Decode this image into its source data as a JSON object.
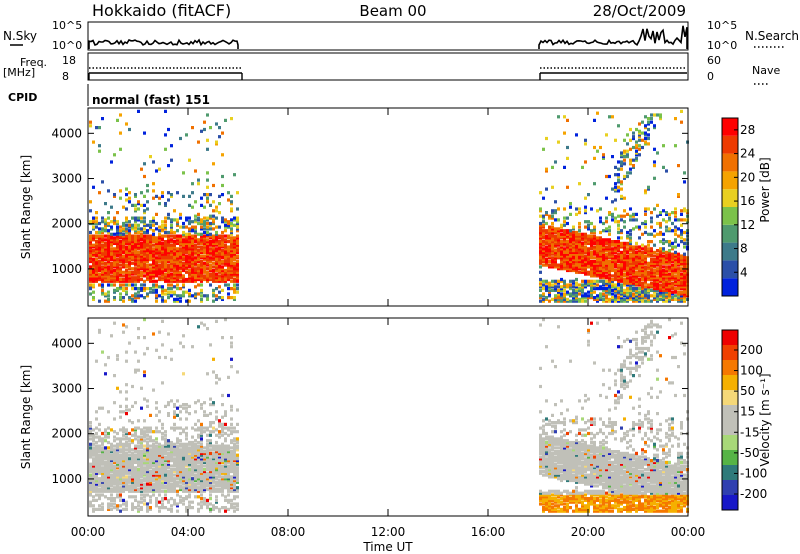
{
  "header": {
    "title": "Hokkaido (fitACF)",
    "beam": "Beam 00",
    "date": "28/Oct/2009"
  },
  "status_panels": {
    "nsky_label": "N.Sky",
    "nsearch_label": "N.Search",
    "nsky_ticks": [
      "10^5",
      "10^0"
    ],
    "nsearch_ticks": [
      "10^5",
      "10^0"
    ],
    "freq_label_1": "Freq.",
    "freq_label_2": "[MHz]",
    "freq_ticks": [
      "18",
      "8"
    ],
    "nave_ticks": [
      "60",
      "0"
    ],
    "nave_label": "Nave",
    "cpid_label": "CPID",
    "cpid_value": "normal (fast) 151"
  },
  "colors": {
    "power_scale": [
      "#0022dd",
      "#2b4fa8",
      "#3d7a8a",
      "#4f9a6e",
      "#7bc24a",
      "#e8d020",
      "#f5a300",
      "#f07000",
      "#ee3a00",
      "#ff0000"
    ],
    "velocity_scale": [
      "#ee0000",
      "#f04000",
      "#f57800",
      "#f5b000",
      "#f5d878",
      "#c0c0b8",
      "#c0c0b8",
      "#a8d878",
      "#56b446",
      "#2f7a7a",
      "#3040b0",
      "#1818c8"
    ]
  },
  "chart_data": [
    {
      "type": "heatmap",
      "panel": "power",
      "ylabel": "Slant Range [km]",
      "ylim": [
        180,
        4560
      ],
      "yticks": [
        1000,
        2000,
        3000,
        4000
      ],
      "xlim_hours": [
        0,
        24
      ],
      "colorbar_label": "Power [dB]",
      "colorbar_ticks": [
        4,
        8,
        12,
        16,
        20,
        24,
        28
      ],
      "colorbar_range": [
        0,
        30
      ],
      "data_intervals_ut": [
        [
          "00:00",
          "06:00"
        ],
        [
          "18:00",
          "24:00"
        ]
      ]
    },
    {
      "type": "heatmap",
      "panel": "velocity",
      "ylabel": "Slant Range [km]",
      "ylim": [
        180,
        4560
      ],
      "yticks": [
        1000,
        2000,
        3000,
        4000
      ],
      "xlim_hours": [
        0,
        24
      ],
      "colorbar_label": "Velocity [m s⁻¹]",
      "colorbar_ticks": [
        "200",
        "100",
        "50",
        "15",
        "-15",
        "-50",
        "-100",
        "-200"
      ],
      "data_intervals_ut": [
        [
          "00:00",
          "06:00"
        ],
        [
          "18:00",
          "24:00"
        ]
      ]
    }
  ],
  "x_axis": {
    "label": "Time UT",
    "ticks": [
      "00:00",
      "04:00",
      "08:00",
      "12:00",
      "16:00",
      "20:00",
      "00:00"
    ]
  }
}
